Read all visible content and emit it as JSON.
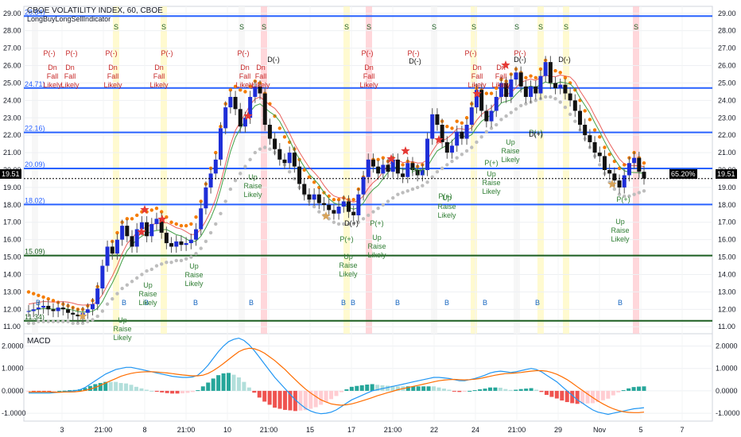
{
  "header": {
    "title": "CBOE VOLATILITY INDEX, 60, CBOE",
    "indicator": "LongBuyLongSellIndicator"
  },
  "current_price": "19.51",
  "percent_tag": "65.20%",
  "macd_label": "MACD",
  "chart_data": [
    {
      "type": "candlestick",
      "title": "CBOE VOLATILITY INDEX, 60, CBOE",
      "ylim": [
        10.6,
        29.4
      ],
      "y_ticks": [
        "11.00",
        "12.00",
        "13.00",
        "14.00",
        "15.00",
        "16.00",
        "17.00",
        "18.00",
        "19.00",
        "20.00",
        "21.00",
        "22.00",
        "23.00",
        "24.00",
        "25.00",
        "26.00",
        "27.00",
        "28.00",
        "29.00"
      ],
      "x_ticks": [
        "3",
        "21:00",
        "8",
        "21:00",
        "10",
        "21:00",
        "15",
        "17",
        "21:00",
        "22",
        "24",
        "21:00",
        "29",
        "Nov",
        "5",
        "7"
      ],
      "levels": [
        {
          "label": "28.84)",
          "value": 28.84,
          "color": "#2962ff"
        },
        {
          "label": "24.71)",
          "value": 24.71,
          "color": "#2962ff"
        },
        {
          "label": "22.16)",
          "value": 22.16,
          "color": "#2962ff"
        },
        {
          "label": "20.09)",
          "value": 20.09,
          "color": "#2962ff"
        },
        {
          "label": "18.02)",
          "value": 18.02,
          "color": "#2962ff"
        },
        {
          "label": "15.09)",
          "value": 15.09,
          "color": "#1b5e20"
        },
        {
          "label": "11.34)",
          "value": 11.34,
          "color": "#1b5e20"
        }
      ],
      "close": [
        11.9,
        12.0,
        12.1,
        12.2,
        12.0,
        11.9,
        12.1,
        12.0,
        11.8,
        11.7,
        11.6,
        11.8,
        12.0,
        12.3,
        13.2,
        14.5,
        15.6,
        15.2,
        16.0,
        16.8,
        16.2,
        15.6,
        16.6,
        17.0,
        16.2,
        16.9,
        17.2,
        16.4,
        15.8,
        15.6,
        15.9,
        15.7,
        15.8,
        16.0,
        16.6,
        17.8,
        19.0,
        19.8,
        20.6,
        22.4,
        23.6,
        24.2,
        23.5,
        22.5,
        23.0,
        24.2,
        24.8,
        24.4,
        22.6,
        21.8,
        21.2,
        20.6,
        20.4,
        21.0,
        20.2,
        19.2,
        18.6,
        18.3,
        18.6,
        18.1,
        18.0,
        17.7,
        17.5,
        17.9,
        18.2,
        17.6,
        17.4,
        18.6,
        19.6,
        20.6,
        20.2,
        19.8,
        20.3,
        19.9,
        20.6,
        19.8,
        19.6,
        20.4,
        20.0,
        19.7,
        20.0,
        21.8,
        23.2,
        22.6,
        21.6,
        21.0,
        21.4,
        22.2,
        21.8,
        22.6,
        23.6,
        24.6,
        23.4,
        22.8,
        23.4,
        24.2,
        25.0,
        24.2,
        25.2,
        25.6,
        24.8,
        24.2,
        24.8,
        24.4,
        25.4,
        26.2,
        25.0,
        24.7,
        24.9,
        24.4,
        24.0,
        23.4,
        22.6,
        22.0,
        21.6,
        21.0,
        20.8,
        20.0,
        19.8,
        19.4,
        19.0,
        19.7,
        20.4,
        20.7,
        19.9,
        19.51
      ],
      "bb_upper": [
        13.0,
        12.9,
        12.8,
        12.7,
        12.6,
        12.5,
        12.4,
        12.3,
        12.2,
        12.1,
        12.0,
        12.0,
        12.2,
        12.5,
        13.3,
        14.3,
        15.3,
        15.9,
        16.4,
        17.0,
        17.2,
        17.2,
        17.4,
        17.6,
        17.6,
        17.7,
        17.8,
        17.6,
        17.3,
        17.0,
        16.9,
        16.8,
        16.8,
        16.9,
        17.3,
        18.2,
        19.2,
        20.1,
        21.0,
        22.5,
        23.8,
        24.6,
        24.8,
        24.6,
        24.5,
        24.8,
        25.1,
        25.0,
        24.4,
        23.8,
        23.1,
        22.4,
        21.9,
        21.6,
        21.2,
        20.6,
        20.0,
        19.6,
        19.3,
        19.0,
        18.7,
        18.5,
        18.3,
        18.3,
        18.4,
        18.3,
        18.3,
        18.9,
        19.6,
        20.4,
        20.6,
        20.6,
        20.7,
        20.5,
        20.7,
        20.5,
        20.3,
        20.5,
        20.4,
        20.2,
        20.3,
        21.6,
        22.8,
        23.0,
        22.8,
        22.5,
        22.4,
        22.8,
        22.7,
        23.0,
        23.8,
        24.7,
        24.6,
        24.4,
        24.4,
        24.7,
        25.2,
        25.1,
        25.5,
        25.8,
        25.6,
        25.3,
        25.4,
        25.3,
        25.8,
        26.3,
        26.0,
        25.7,
        25.6,
        25.3,
        25.0,
        24.6,
        24.0,
        23.4,
        22.9,
        22.3,
        21.9,
        21.3,
        20.9,
        20.5,
        20.1,
        20.3,
        20.7,
        21.0,
        20.7,
        20.4
      ],
      "bb_lower": [
        11.2,
        11.2,
        11.3,
        11.3,
        11.3,
        11.3,
        11.3,
        11.3,
        11.3,
        11.2,
        11.2,
        11.2,
        11.3,
        11.4,
        11.6,
        11.9,
        12.3,
        12.6,
        12.9,
        13.2,
        13.4,
        13.6,
        13.8,
        14.0,
        14.2,
        14.3,
        14.5,
        14.6,
        14.7,
        14.7,
        14.8,
        14.8,
        14.9,
        15.0,
        15.2,
        15.5,
        15.9,
        16.4,
        16.9,
        17.5,
        18.2,
        18.9,
        19.4,
        19.8,
        20.2,
        20.6,
        21.0,
        21.2,
        21.3,
        21.2,
        21.0,
        20.7,
        20.3,
        19.9,
        19.5,
        19.0,
        18.6,
        18.2,
        17.9,
        17.6,
        17.4,
        17.2,
        17.0,
        16.9,
        16.9,
        16.9,
        16.9,
        17.0,
        17.2,
        17.4,
        17.6,
        17.8,
        18.0,
        18.2,
        18.4,
        18.6,
        18.7,
        18.8,
        18.9,
        19.0,
        19.1,
        19.3,
        19.6,
        19.9,
        20.1,
        20.3,
        20.5,
        20.7,
        20.9,
        21.1,
        21.3,
        21.6,
        21.9,
        22.2,
        22.4,
        22.6,
        22.9,
        23.1,
        23.3,
        23.5,
        23.7,
        23.8,
        23.9,
        24.0,
        24.1,
        24.2,
        24.2,
        24.1,
        23.9,
        23.6,
        23.2,
        22.8,
        22.3,
        21.8,
        21.3,
        20.8,
        20.3,
        19.8,
        19.3,
        18.9,
        18.6,
        18.5,
        18.5,
        18.6,
        18.7,
        18.8
      ],
      "signal_labels": {
        "buy": [
          "Up",
          "Raise",
          "Likely"
        ],
        "sell": [
          "Dn",
          "Fall",
          "Likely"
        ],
        "b_marker": "B",
        "s_marker": "S",
        "p_plus": "P(+)",
        "p_minus": "P(-)",
        "d_plus": "D(+)",
        "d_minus": "D(-)"
      }
    },
    {
      "type": "macd",
      "title": "MACD",
      "ylim": [
        -1.35,
        2.55
      ],
      "y_ticks": [
        "2.0000",
        "1.0000",
        "0.0000",
        "-1.0000"
      ],
      "macd": [
        -0.1,
        -0.1,
        -0.1,
        -0.1,
        -0.1,
        -0.08,
        -0.06,
        -0.04,
        -0.02,
        0.0,
        0.05,
        0.15,
        0.3,
        0.45,
        0.6,
        0.75,
        0.85,
        0.95,
        1.0,
        1.05,
        1.05,
        1.0,
        0.95,
        0.9,
        0.85,
        0.8,
        0.75,
        0.7,
        0.65,
        0.62,
        0.6,
        0.6,
        0.62,
        0.7,
        0.9,
        1.15,
        1.45,
        1.75,
        2.0,
        2.2,
        2.3,
        2.35,
        2.25,
        2.05,
        1.8,
        1.5,
        1.2,
        0.9,
        0.6,
        0.35,
        0.1,
        -0.15,
        -0.4,
        -0.6,
        -0.78,
        -0.9,
        -0.98,
        -1.02,
        -1.0,
        -0.95,
        -0.85,
        -0.7,
        -0.55,
        -0.4,
        -0.3,
        -0.2,
        -0.1,
        0.0,
        0.05,
        0.1,
        0.15,
        0.2,
        0.25,
        0.3,
        0.35,
        0.4,
        0.45,
        0.5,
        0.55,
        0.6,
        0.6,
        0.58,
        0.55,
        0.5,
        0.45,
        0.45,
        0.5,
        0.55,
        0.62,
        0.7,
        0.8,
        0.85,
        0.88,
        0.85,
        0.82,
        0.85,
        0.9,
        0.95,
        1.0,
        0.95,
        0.85,
        0.7,
        0.55,
        0.4,
        0.2,
        0.0,
        -0.2,
        -0.4,
        -0.55,
        -0.7,
        -0.85,
        -0.95,
        -1.0,
        -1.05,
        -1.0,
        -0.95,
        -0.9,
        -0.85,
        -0.8,
        -0.78,
        -0.75
      ],
      "signal": [
        -0.05,
        -0.05,
        -0.05,
        -0.05,
        -0.05,
        -0.06,
        -0.06,
        -0.05,
        -0.05,
        -0.04,
        -0.02,
        0.02,
        0.08,
        0.15,
        0.25,
        0.35,
        0.45,
        0.55,
        0.65,
        0.72,
        0.78,
        0.82,
        0.84,
        0.85,
        0.85,
        0.84,
        0.82,
        0.8,
        0.77,
        0.74,
        0.71,
        0.69,
        0.67,
        0.67,
        0.7,
        0.78,
        0.9,
        1.05,
        1.22,
        1.4,
        1.58,
        1.75,
        1.85,
        1.9,
        1.88,
        1.8,
        1.68,
        1.52,
        1.35,
        1.15,
        0.95,
        0.72,
        0.5,
        0.28,
        0.08,
        -0.1,
        -0.25,
        -0.4,
        -0.5,
        -0.58,
        -0.62,
        -0.64,
        -0.62,
        -0.58,
        -0.52,
        -0.45,
        -0.38,
        -0.3,
        -0.22,
        -0.15,
        -0.08,
        -0.02,
        0.05,
        0.1,
        0.15,
        0.2,
        0.25,
        0.3,
        0.35,
        0.4,
        0.45,
        0.48,
        0.5,
        0.51,
        0.5,
        0.49,
        0.5,
        0.52,
        0.55,
        0.6,
        0.65,
        0.7,
        0.74,
        0.77,
        0.78,
        0.8,
        0.82,
        0.85,
        0.88,
        0.9,
        0.9,
        0.88,
        0.82,
        0.74,
        0.63,
        0.5,
        0.35,
        0.18,
        0.02,
        -0.14,
        -0.3,
        -0.45,
        -0.58,
        -0.7,
        -0.8,
        -0.88,
        -0.93,
        -0.96,
        -0.97,
        -0.97,
        -0.95
      ]
    }
  ]
}
